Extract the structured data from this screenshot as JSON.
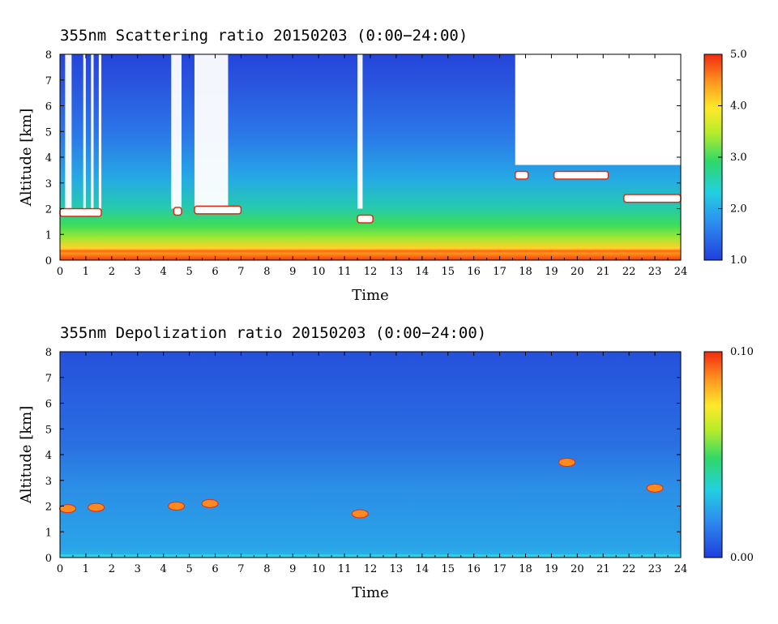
{
  "chart_data": [
    {
      "type": "heatmap",
      "title": "355nm Scattering ratio  20150203 (0:00−24:00)",
      "xlabel": "Time",
      "ylabel": "Altitude [km]",
      "xlim": [
        0,
        24
      ],
      "ylim": [
        0,
        8
      ],
      "x_ticks": [
        0,
        1,
        2,
        3,
        4,
        5,
        6,
        7,
        8,
        9,
        10,
        11,
        12,
        13,
        14,
        15,
        16,
        17,
        18,
        19,
        20,
        21,
        22,
        23,
        24
      ],
      "y_ticks": [
        0,
        1,
        2,
        3,
        4,
        5,
        6,
        7,
        8
      ],
      "colorbar": {
        "min": 1.0,
        "max": 5.0,
        "ticks": [
          "1.0",
          "2.0",
          "3.0",
          "4.0",
          "5.0"
        ],
        "colormap": "jet"
      },
      "features": {
        "surface_layer_top_km": 0.4,
        "boundary_layer_top_km": 1.0,
        "cloud_layers": [
          {
            "t_start": 0.0,
            "t_end": 1.6,
            "alt_km": 1.85
          },
          {
            "t_start": 4.4,
            "t_end": 4.7,
            "alt_km": 1.9
          },
          {
            "t_start": 5.2,
            "t_end": 7.0,
            "alt_km": 1.95
          },
          {
            "t_start": 11.5,
            "t_end": 12.1,
            "alt_km": 1.6
          },
          {
            "t_start": 17.6,
            "t_end": 18.1,
            "alt_km": 3.3
          },
          {
            "t_start": 19.1,
            "t_end": 21.2,
            "alt_km": 3.3
          },
          {
            "t_start": 21.8,
            "t_end": 24.0,
            "alt_km": 2.4
          }
        ]
      }
    },
    {
      "type": "heatmap",
      "title": "355nm Depolization ratio  20150203 (0:00−24:00)",
      "xlabel": "Time",
      "ylabel": "Altitude [km]",
      "xlim": [
        0,
        24
      ],
      "ylim": [
        0,
        8
      ],
      "x_ticks": [
        0,
        1,
        2,
        3,
        4,
        5,
        6,
        7,
        8,
        9,
        10,
        11,
        12,
        13,
        14,
        15,
        16,
        17,
        18,
        19,
        20,
        21,
        22,
        23,
        24
      ],
      "y_ticks": [
        0,
        1,
        2,
        3,
        4,
        5,
        6,
        7,
        8
      ],
      "colorbar": {
        "min": 0.0,
        "max": 0.1,
        "ticks": [
          "0.00",
          "0.10"
        ],
        "colormap": "jet"
      },
      "features": {
        "high_depol_patches": [
          {
            "t": 0.3,
            "alt_km": 1.9
          },
          {
            "t": 1.4,
            "alt_km": 1.95
          },
          {
            "t": 4.5,
            "alt_km": 2.0
          },
          {
            "t": 5.8,
            "alt_km": 2.1
          },
          {
            "t": 11.6,
            "alt_km": 1.7
          },
          {
            "t": 19.6,
            "alt_km": 3.7
          },
          {
            "t": 23.0,
            "alt_km": 2.7
          }
        ]
      }
    }
  ]
}
